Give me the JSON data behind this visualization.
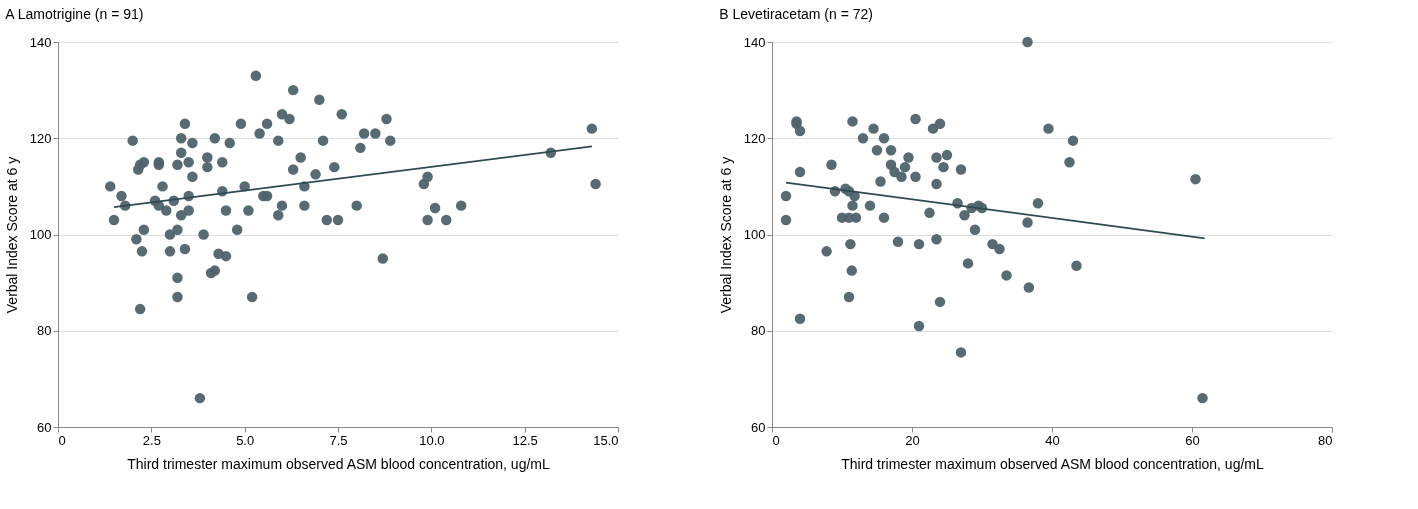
{
  "chart_data": [
    {
      "type": "scatter",
      "title": "A  Lamotrigine (n = 91)",
      "xlabel": "Third trimester maximum observed ASM blood concentration, ug/mL",
      "ylabel": "Verbal Index Score at 6 y",
      "xlim": [
        0,
        15
      ],
      "ylim": [
        60,
        140
      ],
      "xticks": [
        0,
        2.5,
        {
          "value": 5,
          "label": "5.0"
        },
        7.5,
        {
          "value": 10,
          "label": "10.0"
        },
        12.5,
        {
          "value": 15,
          "label": "15.0"
        }
      ],
      "yticks": [
        60,
        80,
        100,
        120,
        140
      ],
      "grid": "y",
      "series": [
        {
          "marker": "circle",
          "color": "#4f636b",
          "x": [
            1.4,
            1.5,
            1.7,
            1.8,
            2.0,
            2.1,
            2.15,
            2.2,
            2.3,
            2.25,
            2.2,
            2.3,
            2.6,
            2.7,
            2.7,
            2.8,
            2.9,
            2.7,
            3.0,
            3.0,
            3.1,
            3.2,
            3.2,
            3.2,
            3.3,
            3.3,
            3.2,
            3.4,
            3.3,
            3.4,
            3.5,
            3.5,
            3.6,
            3.6,
            3.5,
            3.8,
            3.9,
            4.0,
            4.0,
            4.1,
            4.2,
            4.2,
            4.3,
            4.4,
            4.4,
            4.5,
            4.6,
            4.5,
            4.8,
            4.9,
            5.0,
            5.1,
            5.2,
            5.3,
            5.4,
            5.5,
            5.6,
            5.6,
            5.9,
            5.9,
            6.0,
            6.0,
            6.2,
            6.3,
            6.3,
            6.5,
            6.6,
            6.6,
            6.9,
            7.0,
            7.1,
            7.2,
            7.4,
            7.5,
            7.6,
            8.0,
            8.1,
            8.2,
            8.5,
            8.7,
            8.8,
            8.9,
            9.8,
            9.9,
            9.9,
            10.1,
            10.4,
            10.8,
            13.2,
            14.3,
            14.4
          ],
          "values": [
            110,
            103,
            108,
            106,
            119.5,
            99,
            113.5,
            114.5,
            115,
            96.5,
            84.5,
            101,
            107,
            115,
            114.5,
            110,
            105,
            106,
            100,
            96.5,
            107,
            114.5,
            91,
            87,
            120,
            117,
            101,
            123,
            104,
            97,
            108,
            115,
            119,
            112,
            105,
            66,
            100,
            116,
            114,
            92,
            120,
            92.5,
            96,
            109,
            115,
            105,
            119,
            95.5,
            101,
            123,
            110,
            105,
            87,
            133,
            121,
            108,
            123,
            108,
            119.5,
            104,
            125,
            106,
            124,
            113.5,
            130,
            116,
            110,
            106,
            112.5,
            128,
            119.5,
            103,
            114,
            103,
            125,
            106,
            118,
            121,
            121,
            95,
            124,
            119.5,
            110.5,
            112,
            103,
            105.5,
            103,
            106,
            117,
            122,
            110.5
          ]
        },
        {
          "type": "line",
          "color": "#2f4a52",
          "x": [
            1.5,
            14.3
          ],
          "values": [
            105.7,
            118.3
          ]
        }
      ]
    },
    {
      "type": "scatter",
      "title": "B  Levetiracetam (n = 72)",
      "xlabel": "Third trimester maximum observed ASM blood concentration, ug/mL",
      "ylabel": "Verbal Index Score at 6 y",
      "xlim": [
        0,
        80
      ],
      "ylim": [
        60,
        140
      ],
      "xticks": [
        0,
        20,
        40,
        60,
        80
      ],
      "yticks": [
        60,
        80,
        100,
        120,
        140
      ],
      "grid": "y",
      "series": [
        {
          "marker": "circle",
          "color": "#4f636b",
          "x": [
            2,
            2,
            3.5,
            3.5,
            4,
            4,
            4,
            7.8,
            8.5,
            9,
            10,
            10.5,
            11,
            11,
            11.2,
            11.4,
            11,
            11.5,
            11.5,
            11.8,
            12,
            13,
            14,
            14.5,
            15,
            15.5,
            16,
            16,
            17,
            17,
            17.5,
            18,
            18.5,
            19,
            19.5,
            20.5,
            20.5,
            21,
            21,
            22.5,
            23,
            23.5,
            23.5,
            23.5,
            24,
            24,
            24.5,
            25,
            26.5,
            27,
            27,
            27.5,
            28,
            28.5,
            29,
            29.5,
            30,
            31.5,
            32.5,
            33.5,
            36.5,
            36.5,
            36.7,
            38,
            39.5,
            42.5,
            43,
            43.5,
            60.5,
            61.5
          ],
          "values": [
            108,
            103,
            123.5,
            123,
            121.5,
            113,
            82.5,
            96.5,
            114.5,
            109,
            103.5,
            109.5,
            103.5,
            109,
            98,
            92.5,
            87,
            123.5,
            106,
            108,
            103.5,
            120,
            106,
            122,
            117.5,
            111,
            103.5,
            120,
            117.5,
            114.5,
            113,
            98.5,
            112,
            114,
            116,
            124,
            112,
            98,
            81,
            104.5,
            122,
            99,
            116,
            110.5,
            86,
            123,
            114,
            116.5,
            106.5,
            113.5,
            75.5,
            104,
            94,
            105.5,
            101,
            106,
            105.5,
            98,
            97,
            91.5,
            140,
            102.5,
            89,
            106.5,
            122,
            115,
            119.5,
            93.5,
            111.5,
            66
          ]
        },
        {
          "type": "line",
          "color": "#2f4a52",
          "x": [
            2,
            61.8
          ],
          "values": [
            110.8,
            99.2
          ]
        }
      ]
    }
  ]
}
